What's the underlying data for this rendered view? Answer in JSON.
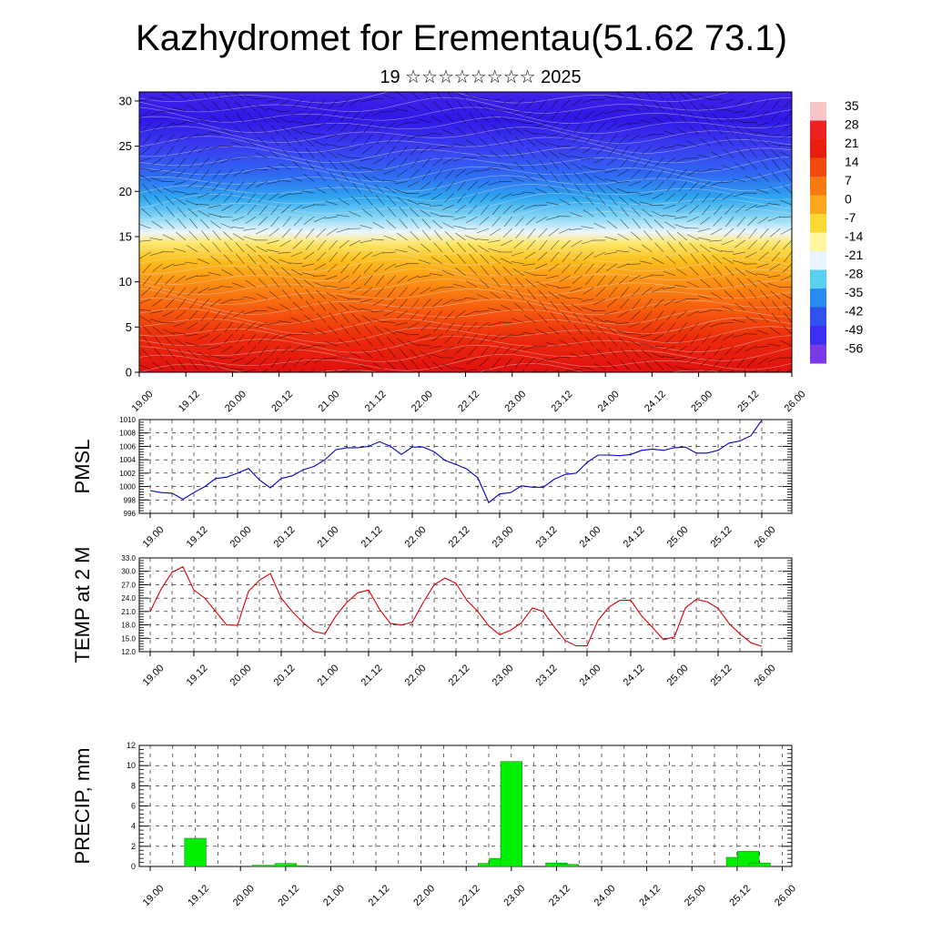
{
  "header": {
    "title": "Kazhydromet for Erementau(51.62 73.1)",
    "subtitle": "19 ☆☆☆☆☆☆☆☆ 2025"
  },
  "time_labels": [
    "19.00",
    "19.12",
    "20.00",
    "20.12",
    "21.00",
    "21.12",
    "22.00",
    "22.12",
    "23.00",
    "23.12",
    "24.00",
    "24.12",
    "25.00",
    "25.12",
    "26.00"
  ],
  "colors": {
    "pmsl_line": "#0000cc",
    "temp_line": "#dd0000",
    "precip_bar": "#00ee00",
    "precip_bar_edge": "#007700",
    "grid": "#000000"
  },
  "chart_data": [
    {
      "id": "cross_section",
      "type": "heatmap",
      "y_ticks": [
        0,
        5,
        10,
        15,
        20,
        25,
        30
      ],
      "ylim": [
        0,
        31
      ],
      "xlim": [
        0,
        14
      ],
      "colorbar": {
        "labels": [
          "35",
          "28",
          "21",
          "14",
          "7",
          "0",
          "-7",
          "-14",
          "-21",
          "-28",
          "-35",
          "-42",
          "-49",
          "-56"
        ],
        "colors": [
          "#f4c6c6",
          "#ee2222",
          "#e61e0e",
          "#f14a0e",
          "#f77a10",
          "#fca81c",
          "#fdd835",
          "#fff59d",
          "#e8f4ff",
          "#5ad0f0",
          "#2a8af0",
          "#3050f0",
          "#3a2ef0",
          "#7b3ae8"
        ]
      }
    },
    {
      "id": "pmsl",
      "type": "line",
      "ylabel": "PMSL",
      "ylim": [
        996,
        1010
      ],
      "y_ticks": [
        "996",
        "998",
        "1000",
        "1002",
        "1004",
        "1006",
        "1008",
        "1010"
      ],
      "x": [
        0,
        0.5,
        1,
        1.5,
        2,
        2.5,
        3,
        3.5,
        4,
        4.5,
        5,
        5.5,
        6,
        6.5,
        7,
        7.5,
        8,
        8.5,
        9,
        9.5,
        10,
        10.5,
        11,
        11.5,
        12,
        12.5,
        13,
        13.5,
        14,
        14.5,
        15,
        15.5,
        16,
        16.5,
        17,
        17.5,
        18,
        18.5,
        19,
        19.5,
        20,
        20.5,
        21,
        21.5,
        22,
        22.5,
        23,
        23.5,
        24,
        24.5,
        25,
        25.5,
        26,
        26.5,
        27,
        27.5,
        28
      ],
      "values": [
        999.4,
        999.1,
        999.0,
        998.1,
        999.1,
        1000.0,
        1001.2,
        1001.4,
        1002.0,
        1002.7,
        1001.0,
        999.8,
        1001.2,
        1001.6,
        1002.5,
        1003.0,
        1004.0,
        1005.5,
        1005.8,
        1005.8,
        1006.0,
        1006.7,
        1006.0,
        1004.8,
        1005.9,
        1005.9,
        1005.2,
        1003.9,
        1003.3,
        1002.6,
        1001.3,
        997.6,
        998.9,
        999.1,
        1000.1,
        999.9,
        999.9,
        1001.1,
        1001.8,
        1002.0,
        1003.6,
        1004.7,
        1004.7,
        1004.6,
        1004.8,
        1005.4,
        1005.6,
        1005.4,
        1005.8,
        1005.9,
        1005.0,
        1005.0,
        1005.4,
        1006.5,
        1006.8,
        1007.6,
        1009.9
      ]
    },
    {
      "id": "temp2m",
      "type": "line",
      "ylabel": "TEMP at 2 M",
      "ylim": [
        12,
        33
      ],
      "y_ticks": [
        "12.0",
        "15.0",
        "18.0",
        "21.0",
        "24.0",
        "27.0",
        "30.0",
        "33.0"
      ],
      "x": [
        0,
        0.5,
        1,
        1.5,
        2,
        2.5,
        3,
        3.5,
        4,
        4.5,
        5,
        5.5,
        6,
        6.5,
        7,
        7.5,
        8,
        8.5,
        9,
        9.5,
        10,
        10.5,
        11,
        11.5,
        12,
        12.5,
        13,
        13.5,
        14,
        14.5,
        15,
        15.5,
        16,
        16.5,
        17,
        17.5,
        18,
        18.5,
        19,
        19.5,
        20,
        20.5,
        21,
        21.5,
        22,
        22.5,
        23,
        23.5,
        24,
        24.5,
        25,
        25.5,
        26,
        26.5,
        27,
        27.5,
        28
      ],
      "values": [
        21.0,
        26.0,
        29.8,
        31.0,
        25.8,
        24.0,
        21.0,
        18.0,
        17.9,
        25.5,
        28.0,
        29.5,
        24.0,
        21.0,
        18.5,
        16.5,
        16.0,
        20.0,
        23.0,
        25.2,
        25.8,
        21.5,
        18.3,
        18.0,
        18.6,
        23.0,
        27.0,
        28.5,
        27.3,
        23.5,
        21.0,
        17.8,
        15.8,
        16.8,
        18.5,
        21.8,
        21.0,
        17.5,
        14.5,
        13.3,
        13.3,
        19.0,
        22.0,
        23.5,
        23.5,
        20.0,
        17.4,
        14.7,
        15.3,
        21.8,
        23.7,
        23.2,
        21.7,
        18.3,
        16.0,
        14.0,
        13.2
      ]
    },
    {
      "id": "precip",
      "type": "bar",
      "ylabel": "PRECIP, mm",
      "ylim": [
        0,
        12
      ],
      "y_ticks": [
        "0",
        "2",
        "4",
        "6",
        "8",
        "10",
        "12"
      ],
      "bars": [
        {
          "x": 2,
          "value": 2.8
        },
        {
          "x": 5,
          "value": 0.12
        },
        {
          "x": 6,
          "value": 0.3
        },
        {
          "x": 6.5,
          "value": 0.08
        },
        {
          "x": 15,
          "value": 0.3
        },
        {
          "x": 15.5,
          "value": 0.8
        },
        {
          "x": 16,
          "value": 10.4
        },
        {
          "x": 18,
          "value": 0.35
        },
        {
          "x": 18.5,
          "value": 0.2
        },
        {
          "x": 26,
          "value": 0.9
        },
        {
          "x": 26.5,
          "value": 1.5
        },
        {
          "x": 27,
          "value": 0.35
        }
      ]
    }
  ]
}
